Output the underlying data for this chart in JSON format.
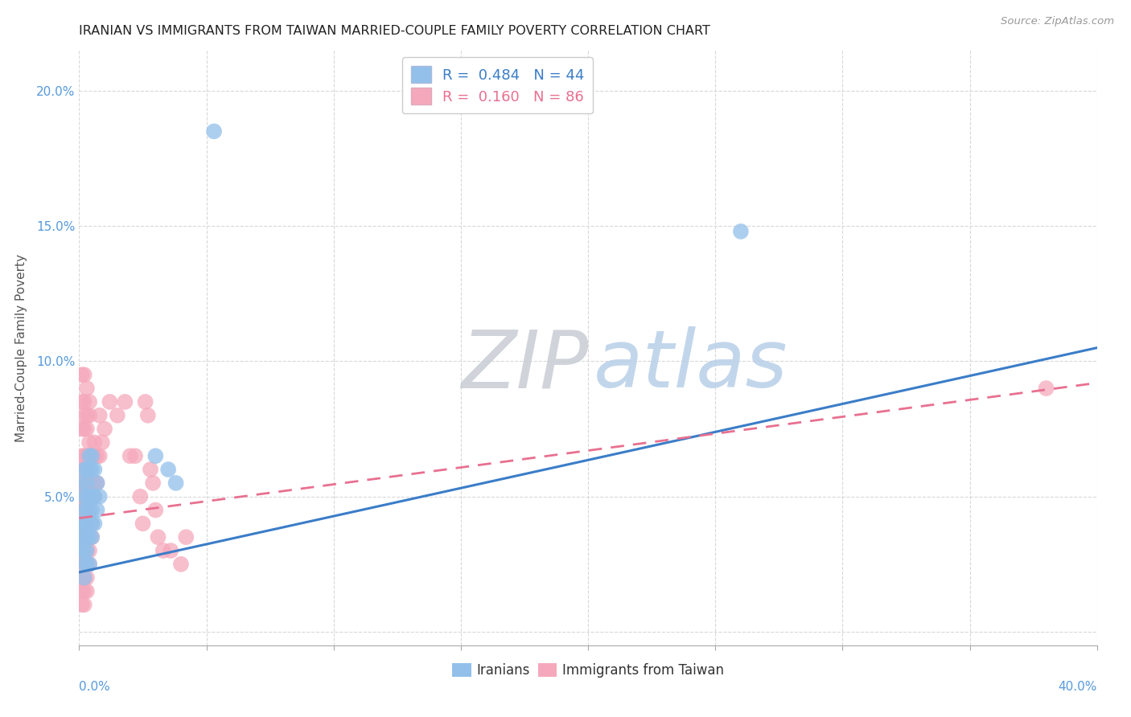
{
  "title": "IRANIAN VS IMMIGRANTS FROM TAIWAN MARRIED-COUPLE FAMILY POVERTY CORRELATION CHART",
  "source": "Source: ZipAtlas.com",
  "ylabel": "Married-Couple Family Poverty",
  "ytick_vals": [
    0.0,
    0.05,
    0.1,
    0.15,
    0.2
  ],
  "ytick_labels": [
    "",
    "5.0%",
    "10.0%",
    "15.0%",
    "20.0%"
  ],
  "xlim": [
    0.0,
    0.4
  ],
  "ylim": [
    -0.005,
    0.215
  ],
  "watermark_zip": "ZIP",
  "watermark_atlas": "atlas",
  "legend_iranian": {
    "R": "0.484",
    "N": "44"
  },
  "legend_taiwan": {
    "R": "0.160",
    "N": "86"
  },
  "color_iranian": "#92C0EA",
  "color_taiwan": "#F5A8BB",
  "color_line_iranian": "#3B7DC8",
  "color_line_taiwan": "#E87090",
  "iranian_points": [
    [
      0.001,
      0.04
    ],
    [
      0.001,
      0.035
    ],
    [
      0.001,
      0.03
    ],
    [
      0.001,
      0.055
    ],
    [
      0.002,
      0.05
    ],
    [
      0.002,
      0.045
    ],
    [
      0.002,
      0.06
    ],
    [
      0.002,
      0.04
    ],
    [
      0.002,
      0.035
    ],
    [
      0.002,
      0.03
    ],
    [
      0.002,
      0.025
    ],
    [
      0.002,
      0.02
    ],
    [
      0.003,
      0.06
    ],
    [
      0.003,
      0.055
    ],
    [
      0.003,
      0.05
    ],
    [
      0.003,
      0.045
    ],
    [
      0.003,
      0.04
    ],
    [
      0.003,
      0.035
    ],
    [
      0.003,
      0.03
    ],
    [
      0.003,
      0.025
    ],
    [
      0.004,
      0.065
    ],
    [
      0.004,
      0.06
    ],
    [
      0.004,
      0.05
    ],
    [
      0.004,
      0.045
    ],
    [
      0.004,
      0.04
    ],
    [
      0.004,
      0.035
    ],
    [
      0.004,
      0.025
    ],
    [
      0.005,
      0.065
    ],
    [
      0.005,
      0.06
    ],
    [
      0.005,
      0.05
    ],
    [
      0.005,
      0.045
    ],
    [
      0.005,
      0.04
    ],
    [
      0.005,
      0.035
    ],
    [
      0.006,
      0.06
    ],
    [
      0.006,
      0.05
    ],
    [
      0.006,
      0.04
    ],
    [
      0.007,
      0.055
    ],
    [
      0.007,
      0.045
    ],
    [
      0.008,
      0.05
    ],
    [
      0.03,
      0.065
    ],
    [
      0.035,
      0.06
    ],
    [
      0.038,
      0.055
    ],
    [
      0.053,
      0.185
    ],
    [
      0.26,
      0.148
    ]
  ],
  "taiwan_points": [
    [
      0.001,
      0.095
    ],
    [
      0.001,
      0.085
    ],
    [
      0.001,
      0.075
    ],
    [
      0.001,
      0.065
    ],
    [
      0.001,
      0.06
    ],
    [
      0.001,
      0.055
    ],
    [
      0.001,
      0.05
    ],
    [
      0.001,
      0.045
    ],
    [
      0.001,
      0.04
    ],
    [
      0.001,
      0.035
    ],
    [
      0.001,
      0.03
    ],
    [
      0.001,
      0.025
    ],
    [
      0.001,
      0.02
    ],
    [
      0.001,
      0.015
    ],
    [
      0.001,
      0.01
    ],
    [
      0.002,
      0.095
    ],
    [
      0.002,
      0.085
    ],
    [
      0.002,
      0.08
    ],
    [
      0.002,
      0.075
    ],
    [
      0.002,
      0.065
    ],
    [
      0.002,
      0.06
    ],
    [
      0.002,
      0.055
    ],
    [
      0.002,
      0.05
    ],
    [
      0.002,
      0.045
    ],
    [
      0.002,
      0.04
    ],
    [
      0.002,
      0.035
    ],
    [
      0.002,
      0.03
    ],
    [
      0.002,
      0.025
    ],
    [
      0.002,
      0.02
    ],
    [
      0.002,
      0.015
    ],
    [
      0.002,
      0.01
    ],
    [
      0.003,
      0.09
    ],
    [
      0.003,
      0.08
    ],
    [
      0.003,
      0.075
    ],
    [
      0.003,
      0.065
    ],
    [
      0.003,
      0.06
    ],
    [
      0.003,
      0.055
    ],
    [
      0.003,
      0.05
    ],
    [
      0.003,
      0.045
    ],
    [
      0.003,
      0.04
    ],
    [
      0.003,
      0.035
    ],
    [
      0.003,
      0.03
    ],
    [
      0.003,
      0.025
    ],
    [
      0.003,
      0.02
    ],
    [
      0.003,
      0.015
    ],
    [
      0.004,
      0.085
    ],
    [
      0.004,
      0.08
    ],
    [
      0.004,
      0.07
    ],
    [
      0.004,
      0.065
    ],
    [
      0.004,
      0.055
    ],
    [
      0.004,
      0.045
    ],
    [
      0.004,
      0.04
    ],
    [
      0.004,
      0.03
    ],
    [
      0.004,
      0.025
    ],
    [
      0.005,
      0.065
    ],
    [
      0.005,
      0.055
    ],
    [
      0.005,
      0.05
    ],
    [
      0.005,
      0.04
    ],
    [
      0.005,
      0.035
    ],
    [
      0.006,
      0.07
    ],
    [
      0.006,
      0.065
    ],
    [
      0.006,
      0.055
    ],
    [
      0.006,
      0.05
    ],
    [
      0.007,
      0.065
    ],
    [
      0.007,
      0.055
    ],
    [
      0.008,
      0.08
    ],
    [
      0.008,
      0.065
    ],
    [
      0.009,
      0.07
    ],
    [
      0.01,
      0.075
    ],
    [
      0.012,
      0.085
    ],
    [
      0.015,
      0.08
    ],
    [
      0.018,
      0.085
    ],
    [
      0.02,
      0.065
    ],
    [
      0.022,
      0.065
    ],
    [
      0.024,
      0.05
    ],
    [
      0.025,
      0.04
    ],
    [
      0.026,
      0.085
    ],
    [
      0.027,
      0.08
    ],
    [
      0.028,
      0.06
    ],
    [
      0.029,
      0.055
    ],
    [
      0.03,
      0.045
    ],
    [
      0.031,
      0.035
    ],
    [
      0.033,
      0.03
    ],
    [
      0.036,
      0.03
    ],
    [
      0.04,
      0.025
    ],
    [
      0.042,
      0.035
    ],
    [
      0.38,
      0.09
    ]
  ],
  "iranian_line": {
    "x0": 0.0,
    "y0": 0.022,
    "x1": 0.4,
    "y1": 0.105
  },
  "taiwan_line": {
    "x0": 0.0,
    "y0": 0.042,
    "x1": 0.4,
    "y1": 0.092
  }
}
